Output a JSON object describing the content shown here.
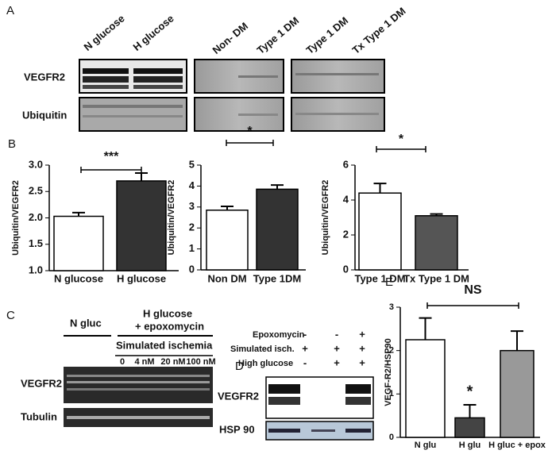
{
  "panels": {
    "a": {
      "letter": "A",
      "lanes": [
        "N glucose",
        "H glucose",
        "Non- DM",
        "Type 1 DM",
        "Type 1 DM",
        "Tx Type 1 DM"
      ],
      "rows": [
        "VEGFR2",
        "Ubiquitin"
      ]
    },
    "b": {
      "letter": "B"
    },
    "c": {
      "letter": "C",
      "n_gluc": "N gluc",
      "h_glucose": "H glucose",
      "epoxomycin": "+ epoxomycin",
      "ischemia": "Simulated ischemia",
      "doses": [
        "0",
        "4 nM",
        "20 nM",
        "100 nM"
      ],
      "rows": [
        "VEGFR2",
        "Tubulin"
      ]
    },
    "d": {
      "letter": "D",
      "conditions": [
        "Epoxomycin",
        "Simulated isch.",
        "High glucose"
      ],
      "signs": [
        [
          "-",
          "-",
          "+"
        ],
        [
          "+",
          "+",
          "+"
        ],
        [
          "-",
          "+",
          "+"
        ]
      ],
      "rows": [
        "VEGFR2",
        "HSP 90"
      ]
    },
    "e": {
      "letter": "E"
    }
  },
  "chart_data": [
    {
      "type": "bar",
      "y_label": "Ubiquitin/VEGFR2",
      "categories": [
        "N glucose",
        "H glucose"
      ],
      "values": [
        2.03,
        2.7
      ],
      "errors": [
        0.07,
        0.15
      ],
      "colors": [
        "#ffffff",
        "#333333"
      ],
      "ylim": [
        1.0,
        3.0
      ],
      "yticks": [
        {
          "value": 1.0,
          "label": "1.0"
        },
        {
          "value": 1.5,
          "label": "1.5"
        },
        {
          "value": 2.0,
          "label": "2.0"
        },
        {
          "value": 2.5,
          "label": "2.5"
        },
        {
          "value": 3.0,
          "label": "3.0"
        }
      ],
      "significance": "***"
    },
    {
      "type": "bar",
      "y_label": "Ubiquitin/VEGFR2",
      "categories": [
        "Non DM",
        "Type 1DM"
      ],
      "values": [
        2.85,
        3.85
      ],
      "errors": [
        0.18,
        0.2
      ],
      "colors": [
        "#ffffff",
        "#333333"
      ],
      "ylim": [
        0,
        5
      ],
      "yticks": [
        0,
        1,
        2,
        3,
        4,
        5
      ],
      "significance": "*"
    },
    {
      "type": "bar",
      "y_label": "Ubiquitin/VEGFR2",
      "categories": [
        "Type 1 DM",
        "Tx Type 1 DM"
      ],
      "values": [
        4.4,
        3.1
      ],
      "errors": [
        0.55,
        0.1
      ],
      "colors": [
        "#ffffff",
        "#555555"
      ],
      "ylim": [
        0,
        6
      ],
      "yticks": [
        0,
        2,
        4,
        6
      ],
      "significance": "*"
    },
    {
      "type": "bar",
      "y_label": "VEGF-R2/HSP90",
      "categories": [
        "N glu",
        "H glu",
        "H gluc + epox"
      ],
      "values": [
        2.25,
        0.45,
        2.0
      ],
      "errors": [
        0.5,
        0.3,
        0.45
      ],
      "colors": [
        "#ffffff",
        "#444444",
        "#999999"
      ],
      "ylim": [
        0,
        3
      ],
      "yticks": [
        0,
        1,
        2,
        3
      ],
      "significance": "NS",
      "bar_annotation": "*"
    }
  ]
}
